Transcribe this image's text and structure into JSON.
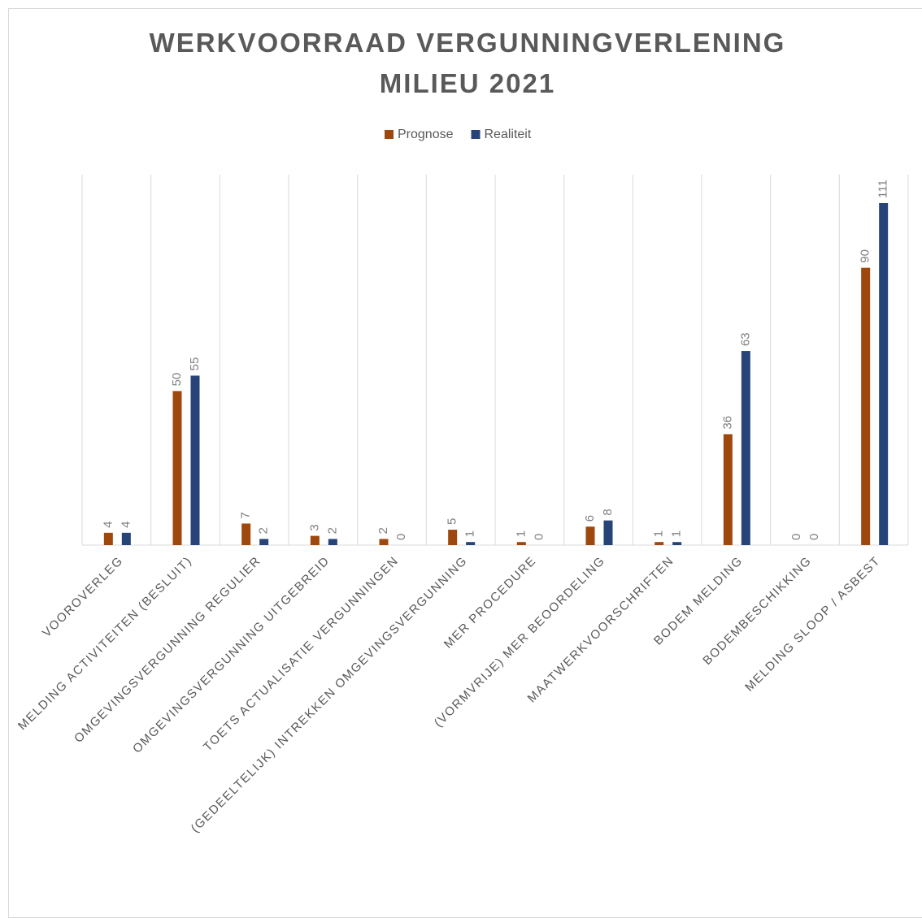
{
  "chart_data": {
    "type": "bar",
    "title": "WERKVOORRAAD VERGUNNINGVERLENING MILIEU 2021",
    "categories": [
      "VOOROVERLEG",
      "MELDING ACTIVITEITEN (BESLUIT)",
      "OMGEVINGSVERGUNNING REGULIER",
      "OMGEVINGSVERGUNNING UITGEBREID",
      "TOETS ACTUALISATIE VERGUNNINGEN",
      "(GEDEELTELIJK) INTREKKEN OMGEVINGSVERGUNNING",
      "MER PROCEDURE",
      "(VORMVRIJE) MER BEOORDELING",
      "MAATWERKVOORSCHRIFTEN",
      "BODEM MELDING",
      "BODEMBESCHIKKING",
      "MELDING SLOOP / ASBEST"
    ],
    "series": [
      {
        "name": "Prognose",
        "color": "#9e480e",
        "values": [
          4,
          50,
          7,
          3,
          2,
          5,
          1,
          6,
          1,
          36,
          0,
          90
        ]
      },
      {
        "name": "Realiteit",
        "color": "#264478",
        "values": [
          4,
          55,
          2,
          2,
          0,
          1,
          0,
          8,
          1,
          63,
          0,
          111
        ]
      }
    ],
    "grid": true,
    "legend": "top"
  }
}
